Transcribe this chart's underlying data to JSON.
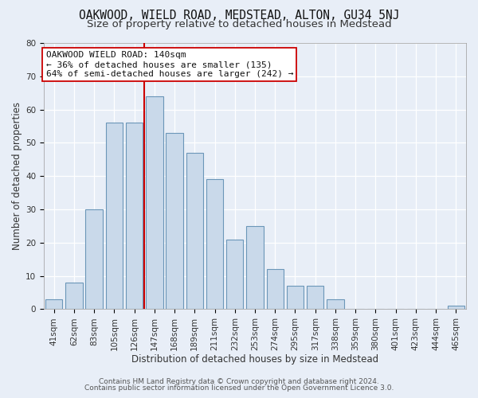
{
  "title": "OAKWOOD, WIELD ROAD, MEDSTEAD, ALTON, GU34 5NJ",
  "subtitle": "Size of property relative to detached houses in Medstead",
  "xlabel": "Distribution of detached houses by size in Medstead",
  "ylabel": "Number of detached properties",
  "bar_labels": [
    "41sqm",
    "62sqm",
    "83sqm",
    "105sqm",
    "126sqm",
    "147sqm",
    "168sqm",
    "189sqm",
    "211sqm",
    "232sqm",
    "253sqm",
    "274sqm",
    "295sqm",
    "317sqm",
    "338sqm",
    "359sqm",
    "380sqm",
    "401sqm",
    "423sqm",
    "444sqm",
    "465sqm"
  ],
  "bar_heights": [
    3,
    8,
    30,
    56,
    56,
    64,
    53,
    47,
    39,
    21,
    25,
    12,
    7,
    7,
    3,
    0,
    0,
    0,
    0,
    0,
    1
  ],
  "bar_color": "#c9d9ea",
  "bar_edge_color": "#6b96b8",
  "vline_x_index": 5,
  "vline_color": "#cc0000",
  "annotation_text": "OAKWOOD WIELD ROAD: 140sqm\n← 36% of detached houses are smaller (135)\n64% of semi-detached houses are larger (242) →",
  "annotation_box_color": "#ffffff",
  "annotation_box_edge_color": "#cc0000",
  "ylim": [
    0,
    80
  ],
  "yticks": [
    0,
    10,
    20,
    30,
    40,
    50,
    60,
    70,
    80
  ],
  "footer_lines": [
    "Contains HM Land Registry data © Crown copyright and database right 2024.",
    "Contains public sector information licensed under the Open Government Licence 3.0."
  ],
  "background_color": "#e8eef7",
  "plot_background_color": "#e8eef7",
  "title_fontsize": 10.5,
  "subtitle_fontsize": 9.5,
  "axis_label_fontsize": 8.5,
  "tick_fontsize": 7.5,
  "footer_fontsize": 6.5
}
